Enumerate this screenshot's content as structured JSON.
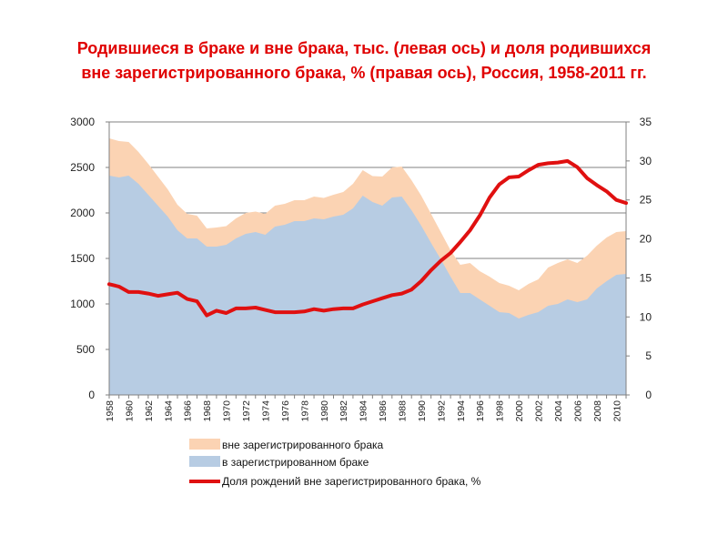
{
  "title": {
    "line1": "Родившиеся в браке и вне брака, тыс. (левая ось) и доля родившихся",
    "line2": "вне зарегистрированного брака, % (правая ось), Россия, 1958-2011 гг."
  },
  "colors": {
    "out_of_wedlock_area": "#FBD3B3",
    "in_wedlock_area": "#B7CCE3",
    "share_line": "#E01010",
    "grid": "#808080",
    "axis": "#808080"
  },
  "chart_data": {
    "type": "area",
    "title": "Родившиеся в браке и вне брака, тыс. (левая ось) и доля родившихся вне зарегистрированного брака, % (правая ось), Россия, 1958-2011 гг.",
    "x": [
      1958,
      1959,
      1960,
      1961,
      1962,
      1963,
      1964,
      1965,
      1966,
      1967,
      1968,
      1969,
      1970,
      1971,
      1972,
      1973,
      1974,
      1975,
      1976,
      1977,
      1978,
      1979,
      1980,
      1981,
      1982,
      1983,
      1984,
      1985,
      1986,
      1987,
      1988,
      1989,
      1990,
      1991,
      1992,
      1993,
      1994,
      1995,
      1996,
      1997,
      1998,
      1999,
      2000,
      2001,
      2002,
      2003,
      2004,
      2005,
      2006,
      2007,
      2008,
      2009,
      2010,
      2011
    ],
    "x_tick_labels": [
      "1958",
      "1960",
      "1962",
      "1964",
      "1966",
      "1968",
      "1970",
      "1972",
      "1974",
      "1976",
      "1978",
      "1980",
      "1982",
      "1984",
      "1986",
      "1988",
      "1990",
      "1992",
      "1994",
      "1996",
      "1998",
      "2000",
      "2002",
      "2004",
      "2006",
      "2008",
      "2010"
    ],
    "y_left_ticks": [
      "0",
      "500",
      "1000",
      "1500",
      "2000",
      "2500",
      "3000"
    ],
    "y_right_ticks": [
      "0",
      "5",
      "10",
      "15",
      "20",
      "25",
      "30",
      "35"
    ],
    "ylim_left": [
      0,
      3000
    ],
    "ylim_right": [
      0,
      35
    ],
    "xlabel": "",
    "ylabel_left": "тыс.",
    "ylabel_right": "%",
    "grid": true,
    "legend_position": "bottom",
    "series": [
      {
        "name": "вне зарегистрированного брака",
        "kind": "area",
        "axis": "left",
        "stacked_on": "в зарегистрированном браке",
        "values": [
          410,
          400,
          370,
          350,
          340,
          320,
          300,
          280,
          270,
          250,
          200,
          210,
          205,
          220,
          230,
          225,
          230,
          230,
          230,
          230,
          230,
          240,
          235,
          240,
          250,
          270,
          280,
          285,
          320,
          330,
          330,
          330,
          330,
          320,
          300,
          290,
          310,
          330,
          310,
          320,
          320,
          300,
          310,
          340,
          360,
          420,
          450,
          440,
          430,
          480,
          470,
          480,
          470,
          470
        ]
      },
      {
        "name": "в зарегистрированном браке",
        "kind": "area",
        "axis": "left",
        "values": [
          2410,
          2390,
          2410,
          2320,
          2200,
          2080,
          1960,
          1810,
          1720,
          1720,
          1630,
          1630,
          1650,
          1720,
          1770,
          1790,
          1760,
          1850,
          1870,
          1910,
          1910,
          1940,
          1930,
          1960,
          1980,
          2050,
          2190,
          2120,
          2080,
          2170,
          2180,
          2030,
          1860,
          1670,
          1490,
          1300,
          1120,
          1120,
          1050,
          980,
          910,
          900,
          840,
          880,
          910,
          980,
          1000,
          1050,
          1020,
          1050,
          1170,
          1250,
          1320,
          1330
        ]
      },
      {
        "name": "Доля рождений вне зарегистрированного брака, %",
        "kind": "line",
        "axis": "right",
        "values": [
          14.2,
          13.9,
          13.2,
          13.2,
          13.0,
          12.7,
          12.9,
          13.1,
          12.3,
          12.0,
          10.2,
          10.8,
          10.5,
          11.1,
          11.1,
          11.2,
          10.9,
          10.6,
          10.6,
          10.6,
          10.7,
          11.0,
          10.8,
          11.0,
          11.1,
          11.1,
          11.6,
          12.0,
          12.4,
          12.8,
          13.0,
          13.5,
          14.6,
          16.0,
          17.2,
          18.2,
          19.6,
          21.1,
          23.0,
          25.3,
          27.0,
          27.9,
          28.0,
          28.8,
          29.5,
          29.7,
          29.8,
          30.0,
          29.2,
          27.8,
          26.9,
          26.1,
          25.0,
          24.6
        ]
      }
    ]
  }
}
